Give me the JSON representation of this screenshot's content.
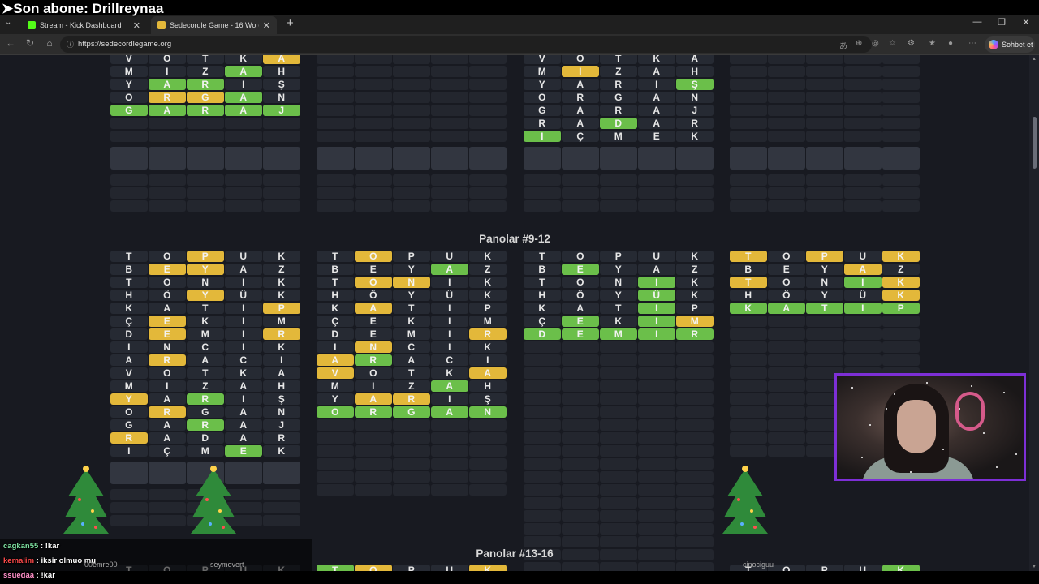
{
  "overlay_text": "➤Son abone: Drillreynaa",
  "browser": {
    "tabs": [
      {
        "title": "Stream - Kick Dashboard",
        "favicon_color": "#53fc18",
        "active": false
      },
      {
        "title": "Sedecordle Game - 16 Words Wo",
        "favicon_color": "#e3b83a",
        "active": true
      }
    ],
    "url": "https://sedecordlegame.org",
    "copilot_label": "Sohbet et"
  },
  "colors": {
    "yellow": "#e3b83a",
    "green": "#6bbf4a",
    "empty": "#262a33",
    "page_bg": "#181a21",
    "webcam_border": "#7d2fd6"
  },
  "sections": {
    "mid_title": "Panolar #9-12",
    "bottom_title": "Panolar #13-16"
  },
  "boards_top": [
    {
      "rows": [
        [
          [
            "V",
            ""
          ],
          [
            "O",
            ""
          ],
          [
            "T",
            ""
          ],
          [
            "K",
            ""
          ],
          [
            "A",
            "y"
          ]
        ],
        [
          [
            "M",
            ""
          ],
          [
            "I",
            ""
          ],
          [
            "Z",
            ""
          ],
          [
            "A",
            "g"
          ],
          [
            "H",
            ""
          ]
        ],
        [
          [
            "Y",
            ""
          ],
          [
            "A",
            "g"
          ],
          [
            "R",
            "g"
          ],
          [
            "I",
            ""
          ],
          [
            "Ş",
            ""
          ]
        ],
        [
          [
            "O",
            ""
          ],
          [
            "R",
            "y"
          ],
          [
            "G",
            "y"
          ],
          [
            "A",
            "g"
          ],
          [
            "N",
            ""
          ]
        ],
        [
          [
            "G",
            "g"
          ],
          [
            "A",
            "g"
          ],
          [
            "R",
            "g"
          ],
          [
            "A",
            "g"
          ],
          [
            "J",
            "g"
          ]
        ]
      ]
    },
    {
      "rows": []
    },
    {
      "rows": [
        [
          [
            "V",
            ""
          ],
          [
            "O",
            ""
          ],
          [
            "T",
            ""
          ],
          [
            "K",
            ""
          ],
          [
            "A",
            ""
          ]
        ],
        [
          [
            "M",
            ""
          ],
          [
            "I",
            "y"
          ],
          [
            "Z",
            ""
          ],
          [
            "A",
            ""
          ],
          [
            "H",
            ""
          ]
        ],
        [
          [
            "Y",
            ""
          ],
          [
            "A",
            ""
          ],
          [
            "R",
            ""
          ],
          [
            "I",
            ""
          ],
          [
            "Ş",
            "g"
          ]
        ],
        [
          [
            "O",
            ""
          ],
          [
            "R",
            ""
          ],
          [
            "G",
            ""
          ],
          [
            "A",
            ""
          ],
          [
            "N",
            ""
          ]
        ],
        [
          [
            "G",
            ""
          ],
          [
            "A",
            ""
          ],
          [
            "R",
            ""
          ],
          [
            "A",
            ""
          ],
          [
            "J",
            ""
          ]
        ],
        [
          [
            "R",
            ""
          ],
          [
            "A",
            ""
          ],
          [
            "D",
            "g"
          ],
          [
            "A",
            ""
          ],
          [
            "R",
            ""
          ]
        ],
        [
          [
            "I",
            "g"
          ],
          [
            "Ç",
            ""
          ],
          [
            "M",
            ""
          ],
          [
            "E",
            ""
          ],
          [
            "K",
            ""
          ]
        ]
      ]
    },
    {
      "rows": []
    }
  ],
  "boards_mid": [
    {
      "rows": [
        [
          [
            "T",
            ""
          ],
          [
            "O",
            ""
          ],
          [
            "P",
            "y"
          ],
          [
            "U",
            ""
          ],
          [
            "K",
            ""
          ]
        ],
        [
          [
            "B",
            ""
          ],
          [
            "E",
            "y"
          ],
          [
            "Y",
            "y"
          ],
          [
            "A",
            ""
          ],
          [
            "Z",
            ""
          ]
        ],
        [
          [
            "T",
            ""
          ],
          [
            "O",
            ""
          ],
          [
            "N",
            ""
          ],
          [
            "I",
            ""
          ],
          [
            "K",
            ""
          ]
        ],
        [
          [
            "H",
            ""
          ],
          [
            "Ö",
            ""
          ],
          [
            "Y",
            "y"
          ],
          [
            "Ü",
            ""
          ],
          [
            "K",
            ""
          ]
        ],
        [
          [
            "K",
            ""
          ],
          [
            "A",
            ""
          ],
          [
            "T",
            ""
          ],
          [
            "I",
            ""
          ],
          [
            "P",
            "y"
          ]
        ],
        [
          [
            "Ç",
            ""
          ],
          [
            "E",
            "y"
          ],
          [
            "K",
            ""
          ],
          [
            "I",
            ""
          ],
          [
            "M",
            ""
          ]
        ],
        [
          [
            "D",
            ""
          ],
          [
            "E",
            "y"
          ],
          [
            "M",
            ""
          ],
          [
            "I",
            ""
          ],
          [
            "R",
            "y"
          ]
        ],
        [
          [
            "I",
            ""
          ],
          [
            "N",
            ""
          ],
          [
            "C",
            ""
          ],
          [
            "I",
            ""
          ],
          [
            "K",
            ""
          ]
        ],
        [
          [
            "A",
            ""
          ],
          [
            "R",
            "y"
          ],
          [
            "A",
            ""
          ],
          [
            "C",
            ""
          ],
          [
            "I",
            ""
          ]
        ],
        [
          [
            "V",
            ""
          ],
          [
            "O",
            ""
          ],
          [
            "T",
            ""
          ],
          [
            "K",
            ""
          ],
          [
            "A",
            ""
          ]
        ],
        [
          [
            "M",
            ""
          ],
          [
            "I",
            ""
          ],
          [
            "Z",
            ""
          ],
          [
            "A",
            ""
          ],
          [
            "H",
            ""
          ]
        ],
        [
          [
            "Y",
            "y"
          ],
          [
            "A",
            ""
          ],
          [
            "R",
            "g"
          ],
          [
            "I",
            ""
          ],
          [
            "Ş",
            ""
          ]
        ],
        [
          [
            "O",
            ""
          ],
          [
            "R",
            "y"
          ],
          [
            "G",
            ""
          ],
          [
            "A",
            ""
          ],
          [
            "N",
            ""
          ]
        ],
        [
          [
            "G",
            ""
          ],
          [
            "A",
            ""
          ],
          [
            "R",
            "g"
          ],
          [
            "A",
            ""
          ],
          [
            "J",
            ""
          ]
        ],
        [
          [
            "R",
            "y"
          ],
          [
            "A",
            ""
          ],
          [
            "D",
            ""
          ],
          [
            "A",
            ""
          ],
          [
            "R",
            ""
          ]
        ],
        [
          [
            "I",
            ""
          ],
          [
            "Ç",
            ""
          ],
          [
            "M",
            ""
          ],
          [
            "E",
            "g"
          ],
          [
            "K",
            ""
          ]
        ]
      ]
    },
    {
      "rows": [
        [
          [
            "T",
            ""
          ],
          [
            "O",
            "y"
          ],
          [
            "P",
            ""
          ],
          [
            "U",
            ""
          ],
          [
            "K",
            ""
          ]
        ],
        [
          [
            "B",
            ""
          ],
          [
            "E",
            ""
          ],
          [
            "Y",
            ""
          ],
          [
            "A",
            "g"
          ],
          [
            "Z",
            ""
          ]
        ],
        [
          [
            "T",
            ""
          ],
          [
            "O",
            "y"
          ],
          [
            "N",
            "y"
          ],
          [
            "I",
            ""
          ],
          [
            "K",
            ""
          ]
        ],
        [
          [
            "H",
            ""
          ],
          [
            "Ö",
            ""
          ],
          [
            "Y",
            ""
          ],
          [
            "Ü",
            ""
          ],
          [
            "K",
            ""
          ]
        ],
        [
          [
            "K",
            ""
          ],
          [
            "A",
            "y"
          ],
          [
            "T",
            ""
          ],
          [
            "I",
            ""
          ],
          [
            "P",
            ""
          ]
        ],
        [
          [
            "Ç",
            ""
          ],
          [
            "E",
            ""
          ],
          [
            "K",
            ""
          ],
          [
            "I",
            ""
          ],
          [
            "M",
            ""
          ]
        ],
        [
          [
            "D",
            ""
          ],
          [
            "E",
            ""
          ],
          [
            "M",
            ""
          ],
          [
            "I",
            ""
          ],
          [
            "R",
            "y"
          ]
        ],
        [
          [
            "I",
            ""
          ],
          [
            "N",
            "y"
          ],
          [
            "C",
            ""
          ],
          [
            "I",
            ""
          ],
          [
            "K",
            ""
          ]
        ],
        [
          [
            "A",
            "y"
          ],
          [
            "R",
            "g"
          ],
          [
            "A",
            ""
          ],
          [
            "C",
            ""
          ],
          [
            "I",
            ""
          ]
        ],
        [
          [
            "V",
            "y"
          ],
          [
            "O",
            ""
          ],
          [
            "T",
            ""
          ],
          [
            "K",
            ""
          ],
          [
            "A",
            "y"
          ]
        ],
        [
          [
            "M",
            ""
          ],
          [
            "I",
            ""
          ],
          [
            "Z",
            ""
          ],
          [
            "A",
            "g"
          ],
          [
            "H",
            ""
          ]
        ],
        [
          [
            "Y",
            ""
          ],
          [
            "A",
            "y"
          ],
          [
            "R",
            "y"
          ],
          [
            "I",
            ""
          ],
          [
            "Ş",
            ""
          ]
        ],
        [
          [
            "O",
            "g"
          ],
          [
            "R",
            "g"
          ],
          [
            "G",
            "g"
          ],
          [
            "A",
            "g"
          ],
          [
            "N",
            "g"
          ]
        ]
      ]
    },
    {
      "rows": [
        [
          [
            "T",
            ""
          ],
          [
            "O",
            ""
          ],
          [
            "P",
            ""
          ],
          [
            "U",
            ""
          ],
          [
            "K",
            ""
          ]
        ],
        [
          [
            "B",
            ""
          ],
          [
            "E",
            "g"
          ],
          [
            "Y",
            ""
          ],
          [
            "A",
            ""
          ],
          [
            "Z",
            ""
          ]
        ],
        [
          [
            "T",
            ""
          ],
          [
            "O",
            ""
          ],
          [
            "N",
            ""
          ],
          [
            "I",
            "g"
          ],
          [
            "K",
            ""
          ]
        ],
        [
          [
            "H",
            ""
          ],
          [
            "Ö",
            ""
          ],
          [
            "Y",
            ""
          ],
          [
            "Ü",
            "g"
          ],
          [
            "K",
            ""
          ]
        ],
        [
          [
            "K",
            ""
          ],
          [
            "A",
            ""
          ],
          [
            "T",
            ""
          ],
          [
            "I",
            "g"
          ],
          [
            "P",
            ""
          ]
        ],
        [
          [
            "Ç",
            ""
          ],
          [
            "E",
            "g"
          ],
          [
            "K",
            ""
          ],
          [
            "I",
            "g"
          ],
          [
            "M",
            "y"
          ]
        ],
        [
          [
            "D",
            "g"
          ],
          [
            "E",
            "g"
          ],
          [
            "M",
            "g"
          ],
          [
            "I",
            "g"
          ],
          [
            "R",
            "g"
          ]
        ]
      ]
    },
    {
      "rows": [
        [
          [
            "T",
            "y"
          ],
          [
            "O",
            ""
          ],
          [
            "P",
            "y"
          ],
          [
            "U",
            ""
          ],
          [
            "K",
            "y"
          ]
        ],
        [
          [
            "B",
            ""
          ],
          [
            "E",
            ""
          ],
          [
            "Y",
            ""
          ],
          [
            "A",
            "y"
          ],
          [
            "Z",
            ""
          ]
        ],
        [
          [
            "T",
            "y"
          ],
          [
            "O",
            ""
          ],
          [
            "N",
            ""
          ],
          [
            "I",
            "g"
          ],
          [
            "K",
            "y"
          ]
        ],
        [
          [
            "H",
            ""
          ],
          [
            "Ö",
            ""
          ],
          [
            "Y",
            ""
          ],
          [
            "Ü",
            ""
          ],
          [
            "K",
            "y"
          ]
        ],
        [
          [
            "K",
            "g"
          ],
          [
            "A",
            "g"
          ],
          [
            "T",
            "g"
          ],
          [
            "I",
            "g"
          ],
          [
            "P",
            "g"
          ]
        ]
      ]
    }
  ],
  "boards_bottom": [
    {
      "rows": [
        [
          [
            "T",
            ""
          ],
          [
            "O",
            ""
          ],
          [
            "P",
            ""
          ],
          [
            "U",
            ""
          ],
          [
            "K",
            ""
          ]
        ]
      ]
    },
    {
      "rows": [
        [
          [
            "T",
            "g"
          ],
          [
            "O",
            "y"
          ],
          [
            "P",
            ""
          ],
          [
            "U",
            ""
          ],
          [
            "K",
            "y"
          ]
        ]
      ]
    },
    {
      "rows": []
    },
    {
      "rows": [
        [
          [
            "T",
            ""
          ],
          [
            "O",
            ""
          ],
          [
            "P",
            ""
          ],
          [
            "U",
            ""
          ],
          [
            "K",
            "g"
          ]
        ]
      ]
    }
  ],
  "tree_labels": [
    "00emre00",
    "seymovert",
    "cinociguu"
  ],
  "chat": [
    {
      "user": "cagkan55",
      "color": "#7de0a0",
      "message": "!kar"
    },
    {
      "user": "kemalim",
      "color": "#ff4a4a",
      "message": "iksir olmuo mu"
    },
    {
      "user": "ssuedaa",
      "color": "#ff8fc7",
      "message": "!kar"
    }
  ]
}
